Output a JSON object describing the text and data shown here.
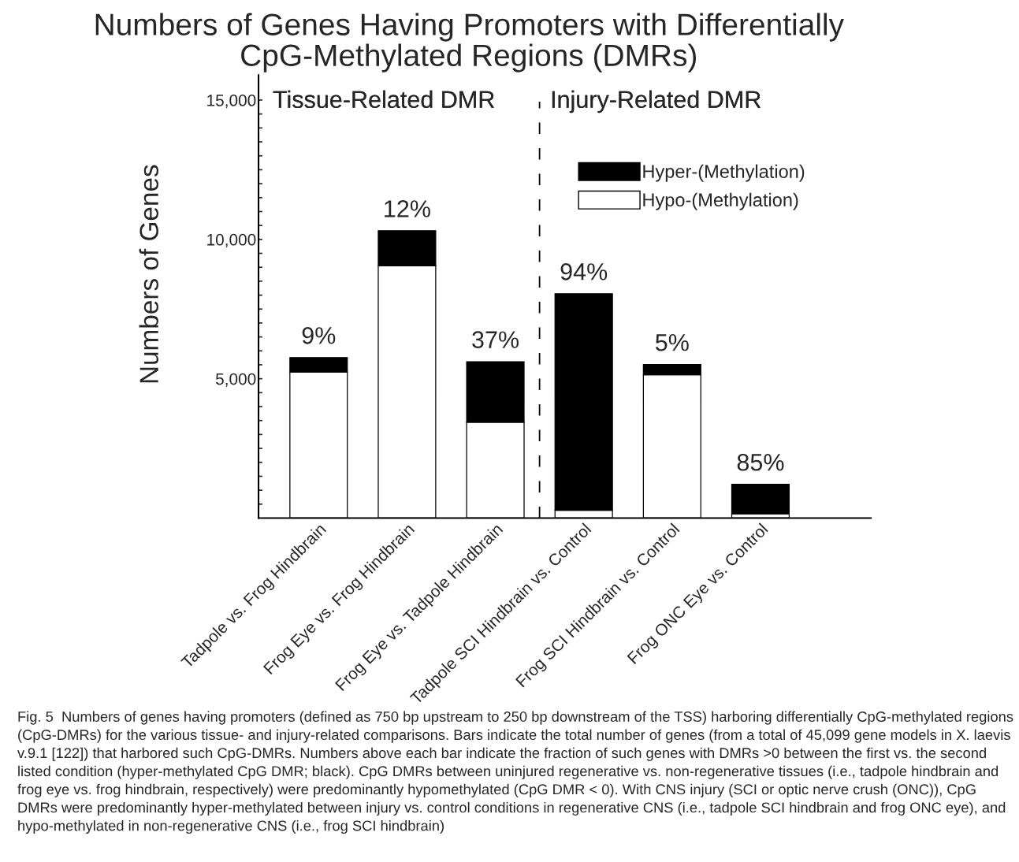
{
  "chart_data": {
    "type": "bar",
    "stacked": true,
    "title": "Numbers of Genes Having Promoters with Differentially\nCpG-Methylated Regions (DMRs)",
    "ylabel": "Numbers of Genes",
    "categories": [
      "Tadpole vs. Frog Hindbrain",
      "Frog Eye vs. Frog Hindbrain",
      "Frog Eye vs. Tadpole Hindbrain",
      "Tadpole SCI Hindbrain vs. Control",
      "Frog SCI Hindbrain vs. Control",
      "Frog ONC Eye vs. Control"
    ],
    "series": [
      {
        "name": "Hypo-(Methylation)",
        "color": "#ffffff",
        "values": [
          5240,
          9050,
          3440,
          280,
          5140,
          150
        ]
      },
      {
        "name": "Hyper-(Methylation)",
        "color": "#000000",
        "values": [
          520,
          1260,
          2170,
          7770,
          370,
          1060
        ]
      }
    ],
    "ylim": [
      0,
      15900
    ],
    "yticks": [
      {
        "value": 500,
        "label": null
      },
      {
        "value": 1000,
        "label": null
      },
      {
        "value": 1500,
        "label": null
      },
      {
        "value": 2000,
        "label": null
      },
      {
        "value": 2500,
        "label": null
      },
      {
        "value": 3000,
        "label": null
      },
      {
        "value": 3500,
        "label": null
      },
      {
        "value": 4000,
        "label": null
      },
      {
        "value": 4500,
        "label": null
      },
      {
        "value": 5000,
        "label": "5,000"
      },
      {
        "value": 5500,
        "label": null
      },
      {
        "value": 6000,
        "label": null
      },
      {
        "value": 6500,
        "label": null
      },
      {
        "value": 7000,
        "label": null
      },
      {
        "value": 7500,
        "label": null
      },
      {
        "value": 8000,
        "label": null
      },
      {
        "value": 8500,
        "label": null
      },
      {
        "value": 9000,
        "label": null
      },
      {
        "value": 9500,
        "label": null
      },
      {
        "value": 10000,
        "label": "10,000"
      },
      {
        "value": 10500,
        "label": null
      },
      {
        "value": 11000,
        "label": null
      },
      {
        "value": 11500,
        "label": null
      },
      {
        "value": 12000,
        "label": null
      },
      {
        "value": 12500,
        "label": null
      },
      {
        "value": 13000,
        "label": null
      },
      {
        "value": 13500,
        "label": null
      },
      {
        "value": 14000,
        "label": null
      },
      {
        "value": 14500,
        "label": null
      },
      {
        "value": 15000,
        "label": "15,000"
      }
    ],
    "annotations": [
      "Tissue-Related DMR",
      "Injury-Related DMR",
      {
        "text": "9%",
        "x": "Tadpole vs. Frog Hindbrain",
        "y": 5760
      },
      {
        "text": "12%",
        "x": "Frog Eye vs. Frog Hindbrain",
        "y": 10310
      },
      {
        "text": "37%",
        "x": "Frog Eye vs. Tadpole Hindbrain",
        "y": 5610
      },
      {
        "text": "94%",
        "x": "Tadpole SCI Hindbrain vs. Control",
        "y": 8050
      },
      {
        "text": "5%",
        "x": "Frog SCI Hindbrain vs. Control",
        "y": 5510
      },
      {
        "text": "85%",
        "x": "Frog ONC Eye vs. Control",
        "y": 1210
      },
      "Fig. 5  Numbers of genes having promoters (defined as 750 bp upstream to 250 bp downstream of the TSS) harboring differentially CpG-methylated regions (CpG-DMRs) for the various tissue- and injury-related comparisons. Bars indicate the total number of genes (from a total of 45,099 gene models in X. laevis v.9.1 [122]) that harbored such CpG-DMRs. Numbers above each bar indicate the fraction of such genes with DMRs >0 between the first vs. the second listed condition (hyper-methylated CpG DMR; black). CpG DMRs between uninjured regenerative vs. non-regenerative tissues (i.e., tadpole hindbrain and frog eye vs. frog hindbrain, respectively) were predominantly hypomethylated (CpG DMR < 0). With CNS injury (SCI or optic nerve crush (ONC)), CpG DMRs were predominantly hyper-methylated between injury vs. control conditions in regenerative CNS (i.e., tadpole SCI hindbrain and frog ONC eye), and hypo-methylated in non-regenerative CNS (i.e., frog SCI hindbrain)"
    ],
    "legend": "top right",
    "grid": false
  }
}
